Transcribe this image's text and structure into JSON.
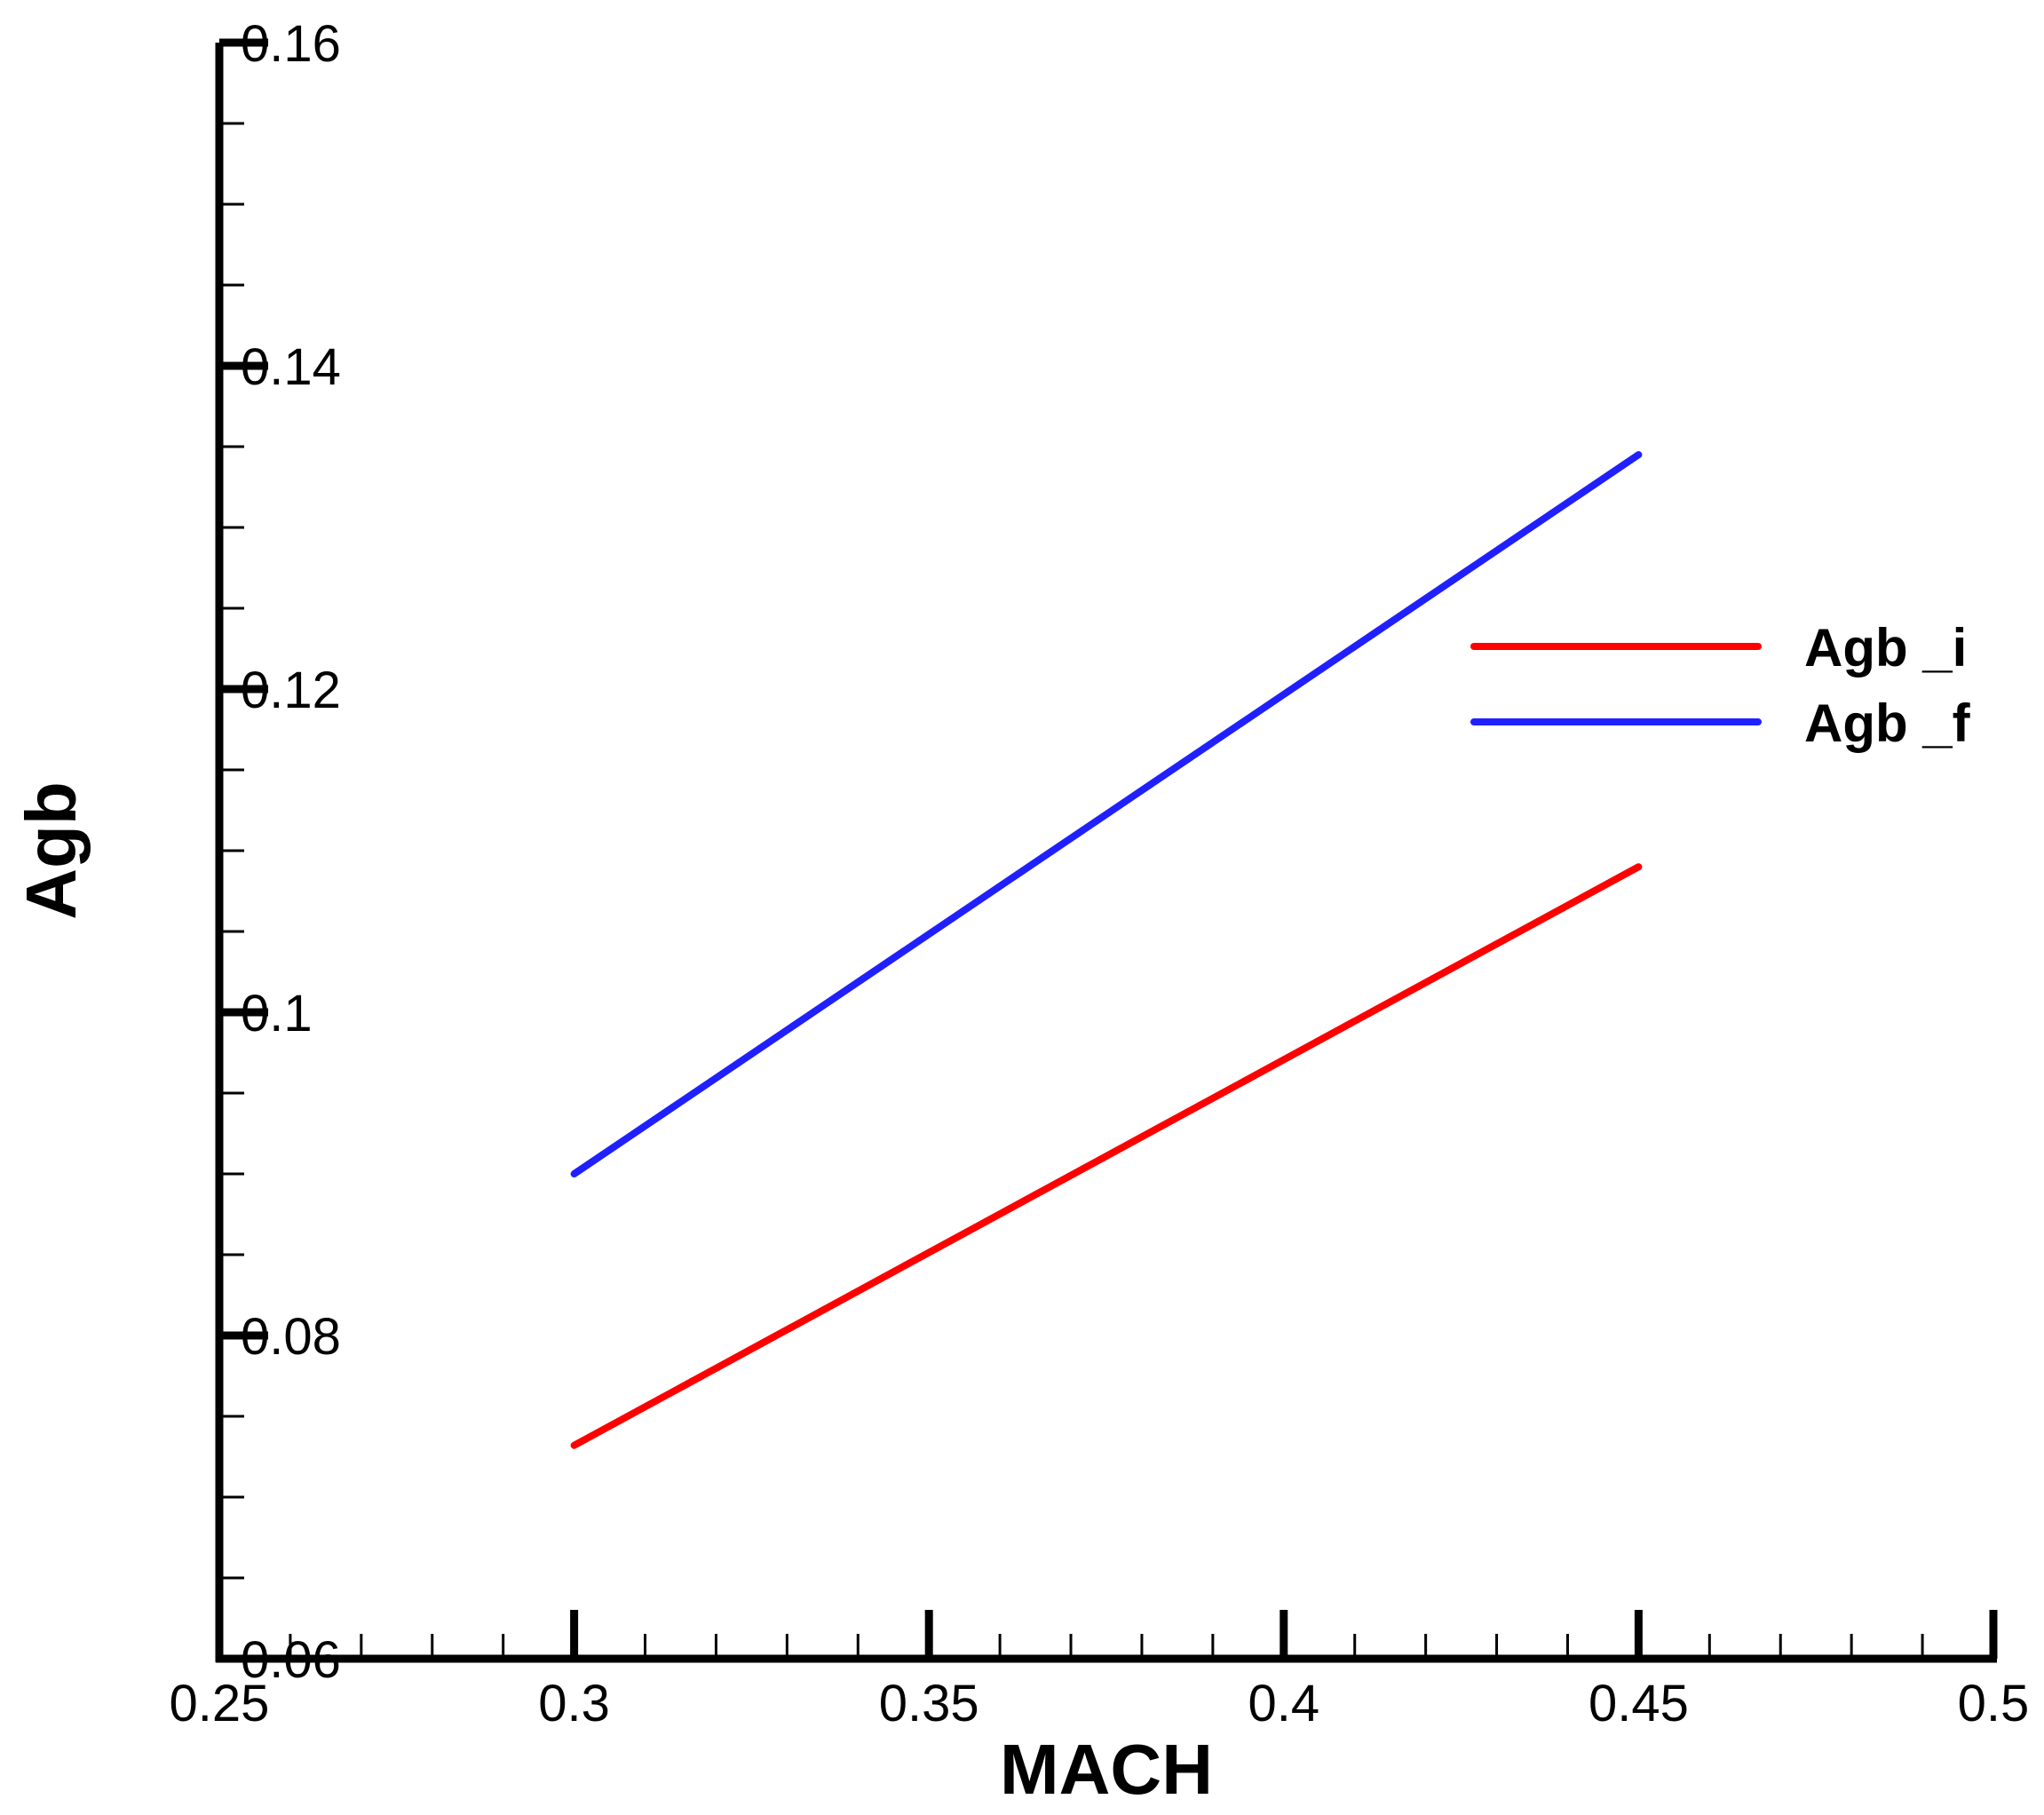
{
  "chart_data": {
    "type": "line",
    "title": "",
    "xlabel": "MACH",
    "ylabel": "Agb",
    "xlim": [
      0.25,
      0.5
    ],
    "ylim": [
      0.06,
      0.16
    ],
    "xticks": [
      0.25,
      0.3,
      0.35,
      0.4,
      0.45,
      0.5
    ],
    "xtick_labels": [
      "0.25",
      "0.3",
      "0.35",
      "0.4",
      "0.45",
      "0.5"
    ],
    "yticks": [
      0.06,
      0.08,
      0.1,
      0.12,
      0.14,
      0.16
    ],
    "ytick_labels": [
      "0.06",
      "0.08",
      "0.1",
      "0.12",
      "0.14",
      "0.16"
    ],
    "x_minor_step": 0.01,
    "y_minor_step": 0.005,
    "grid": false,
    "legend_position": "right",
    "series": [
      {
        "name": "Agb _i",
        "color": "#ff0000",
        "x": [
          0.3,
          0.45
        ],
        "y": [
          0.0732,
          0.109
        ]
      },
      {
        "name": "Agb _f",
        "color": "#2020ff",
        "x": [
          0.3,
          0.45
        ],
        "y": [
          0.09,
          0.1345
        ]
      }
    ]
  }
}
